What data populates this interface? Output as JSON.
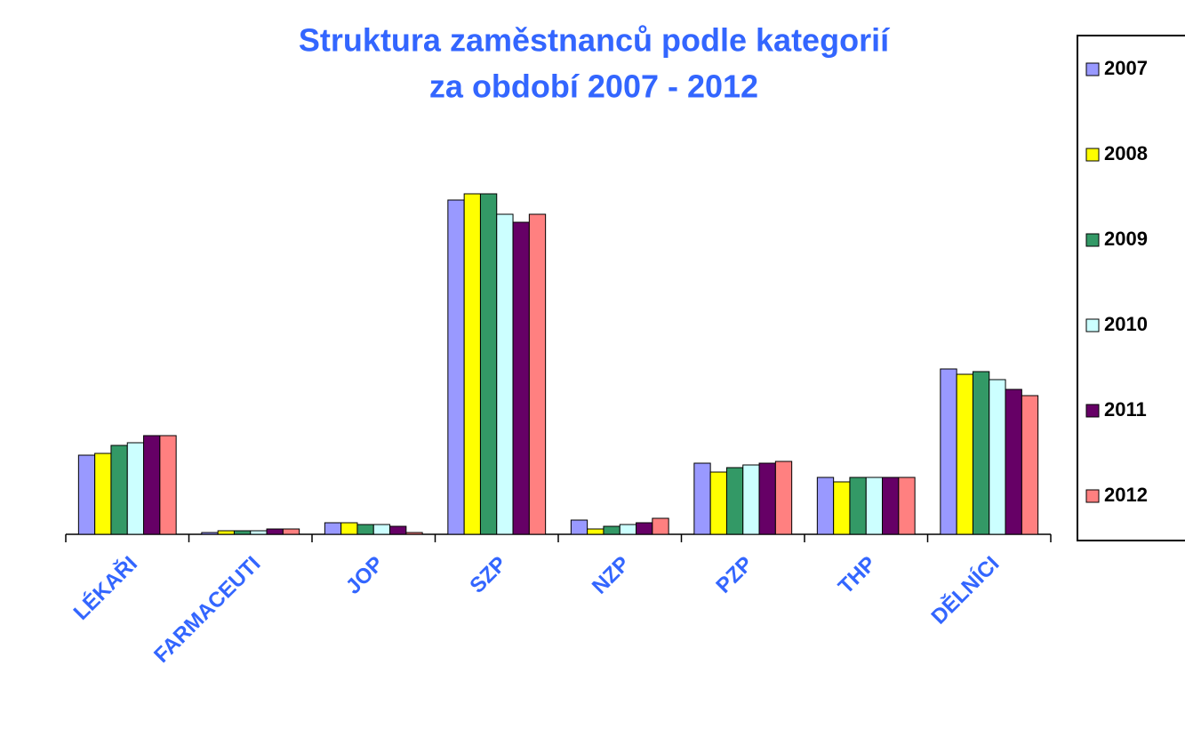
{
  "chart_data": {
    "type": "bar",
    "title": [
      "Struktura zaměstnanců podle kategorií",
      "za období 2007 - 2012"
    ],
    "categories": [
      "LÉKAŘI",
      "FARMACEUTI",
      "JOP",
      "SZP",
      "NZP",
      "PZP",
      "THP",
      "DĚLNÍCI"
    ],
    "series": [
      {
        "name": "2007",
        "color": "#9999ff",
        "values": [
          89,
          2,
          13,
          376,
          16,
          80,
          64,
          186
        ]
      },
      {
        "name": "2008",
        "color": "#ffff00",
        "values": [
          91,
          4,
          13,
          383,
          6,
          70,
          59,
          180
        ]
      },
      {
        "name": "2009",
        "color": "#339966",
        "values": [
          100,
          4,
          11,
          383,
          9,
          75,
          64,
          183
        ]
      },
      {
        "name": "2010",
        "color": "#ccffff",
        "values": [
          103,
          4,
          11,
          360,
          11,
          78,
          64,
          174
        ]
      },
      {
        "name": "2011",
        "color": "#660066",
        "values": [
          111,
          6,
          9,
          351,
          13,
          80,
          64,
          163
        ]
      },
      {
        "name": "2012",
        "color": "#ff8080",
        "values": [
          111,
          6,
          2,
          360,
          18,
          82,
          64,
          156
        ]
      }
    ],
    "legend": "right"
  }
}
